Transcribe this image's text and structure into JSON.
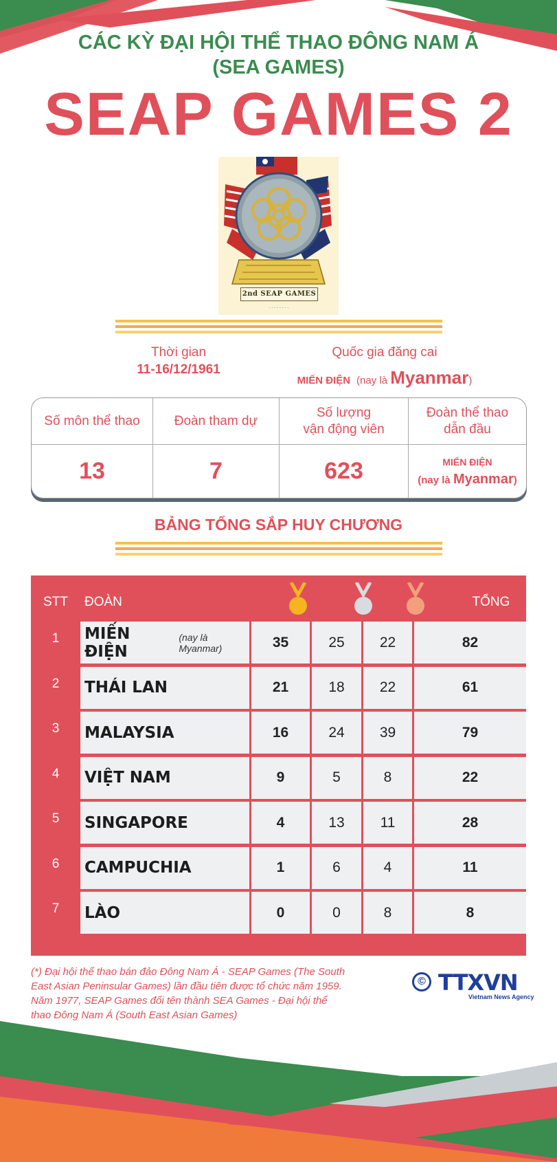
{
  "header": {
    "supertitle_line1": "CÁC KỲ ĐẠI HỘI THỂ THAO ĐÔNG NAM Á",
    "supertitle_line2": "(SEA GAMES)",
    "main_title": "SEAP GAMES 2"
  },
  "emblem": {
    "banner_text": "2nd SEAP GAMES"
  },
  "info": {
    "time_label": "Thời gian",
    "time_value": "11-16/12/1961",
    "host_label": "Quốc gia đăng cai",
    "host_caps": "MIẾN ĐIỆN",
    "host_prefix": "(nay là ",
    "host_name": "Myanmar",
    "host_suffix": ")"
  },
  "stats": {
    "labels": {
      "sports": "Số môn thể thao",
      "delegations": "Đoàn tham dự",
      "athletes_line1": "Số lượng",
      "athletes_line2": "vận động viên",
      "leader_line1": "Đoàn thể thao",
      "leader_line2": "dẫn đầu"
    },
    "values": {
      "sports": "13",
      "delegations": "7",
      "athletes": "623",
      "leader_caps": "MIẾN ĐIỆN",
      "leader_prefix": "(nay là ",
      "leader_name": "Myanmar",
      "leader_suffix": ")"
    }
  },
  "medal_table": {
    "heading": "BẢNG TỔNG SẮP HUY CHƯƠNG",
    "headers": {
      "stt": "STT",
      "team": "ĐOÀN",
      "total": "TỔNG"
    },
    "medal_icons": [
      "gold-medal-icon",
      "silver-medal-icon",
      "bronze-medal-icon"
    ],
    "colors": {
      "gold": "#f5b51f",
      "silver": "#d9dcdf",
      "bronze": "#f2a07c",
      "accent": "#e0505a",
      "green": "#3a8c4f"
    },
    "rows": [
      {
        "stt": "1",
        "name": "MIẾN ĐIỆN",
        "note": "(nay là Myanmar)",
        "gold": "35",
        "silver": "25",
        "bronze": "22",
        "total": "82"
      },
      {
        "stt": "2",
        "name": "THÁI LAN",
        "note": "",
        "gold": "21",
        "silver": "18",
        "bronze": "22",
        "total": "61"
      },
      {
        "stt": "3",
        "name": "MALAYSIA",
        "note": "",
        "gold": "16",
        "silver": "24",
        "bronze": "39",
        "total": "79"
      },
      {
        "stt": "4",
        "name": "VIỆT NAM",
        "note": "",
        "gold": "9",
        "silver": "5",
        "bronze": "8",
        "total": "22"
      },
      {
        "stt": "5",
        "name": "SINGAPORE",
        "note": "",
        "gold": "4",
        "silver": "13",
        "bronze": "11",
        "total": "28"
      },
      {
        "stt": "6",
        "name": "CAMPUCHIA",
        "note": "",
        "gold": "1",
        "silver": "6",
        "bronze": "4",
        "total": "11"
      },
      {
        "stt": "7",
        "name": "LÀO",
        "note": "",
        "gold": "0",
        "silver": "0",
        "bronze": "8",
        "total": "8"
      }
    ]
  },
  "footnote": {
    "line1": "(*) Đại hội thể thao bán đảo Đông Nam Á - SEAP Games (The South",
    "line2": "East Asian Peninsular Games) lần đầu tiên được tổ chức năm 1959.",
    "line3": "Năm 1977, SEAP Games đổi tên thành SEA Games - Đại hội thể",
    "line4": "thao Đông Nam Á (South East Asian Games)"
  },
  "logo": {
    "copyright": "©",
    "brand": "TTXVN",
    "sub": "Vietnam News Agency"
  }
}
